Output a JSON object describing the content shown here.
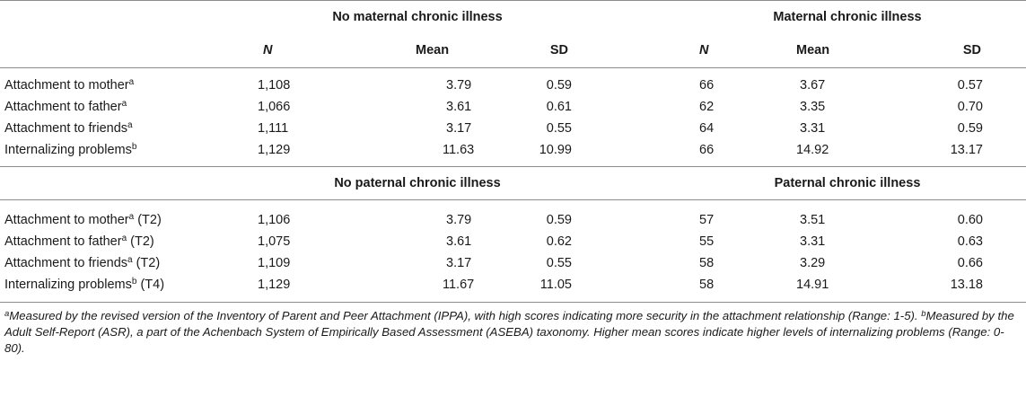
{
  "sections": [
    {
      "group_left": "No maternal chronic illness",
      "group_right": "Maternal chronic illness",
      "columns": [
        "N",
        "Mean",
        "SD",
        "N",
        "Mean",
        "SD"
      ],
      "rows": [
        {
          "label": "Attachment to mother",
          "sup": "a",
          "suffix": "",
          "values": [
            "1,108",
            "3.79",
            "0.59",
            "66",
            "3.67",
            "0.57"
          ]
        },
        {
          "label": "Attachment to father",
          "sup": "a",
          "suffix": "",
          "values": [
            "1,066",
            "3.61",
            "0.61",
            "62",
            "3.35",
            "0.70"
          ]
        },
        {
          "label": "Attachment to friends",
          "sup": "a",
          "suffix": "",
          "values": [
            "1,111",
            "3.17",
            "0.55",
            "64",
            "3.31",
            "0.59"
          ]
        },
        {
          "label": "Internalizing problems",
          "sup": "b",
          "suffix": "",
          "values": [
            "1,129",
            "11.63",
            "10.99",
            "66",
            "14.92",
            "13.17"
          ]
        }
      ]
    },
    {
      "group_left": "No paternal chronic illness",
      "group_right": "Paternal chronic illness",
      "rows": [
        {
          "label": "Attachment to mother",
          "sup": "a",
          "suffix": " (T2)",
          "values": [
            "1,106",
            "3.79",
            "0.59",
            "57",
            "3.51",
            "0.60"
          ]
        },
        {
          "label": "Attachment to father",
          "sup": "a",
          "suffix": " (T2)",
          "values": [
            "1,075",
            "3.61",
            "0.62",
            "55",
            "3.31",
            "0.63"
          ]
        },
        {
          "label": "Attachment to friends",
          "sup": "a",
          "suffix": " (T2)",
          "values": [
            "1,109",
            "3.17",
            "0.55",
            "58",
            "3.29",
            "0.66"
          ]
        },
        {
          "label": "Internalizing problems",
          "sup": "b",
          "suffix": " (T4)",
          "values": [
            "1,129",
            "11.67",
            "11.05",
            "58",
            "14.91",
            "13.18"
          ]
        }
      ]
    }
  ],
  "footnotes": {
    "a_mark": "a",
    "a_text": "Measured by the revised version of the Inventory of Parent and Peer Attachment (IPPA), with high scores indicating more security in the attachment relationship (Range: 1-5). ",
    "b_mark": "b",
    "b_text": "Measured by the Adult Self-Report (ASR), a part of the Achenbach System of Empirically Based Assessment (ASEBA) taxonomy. Higher mean scores indicate higher levels of internalizing problems (Range: 0-80)."
  }
}
